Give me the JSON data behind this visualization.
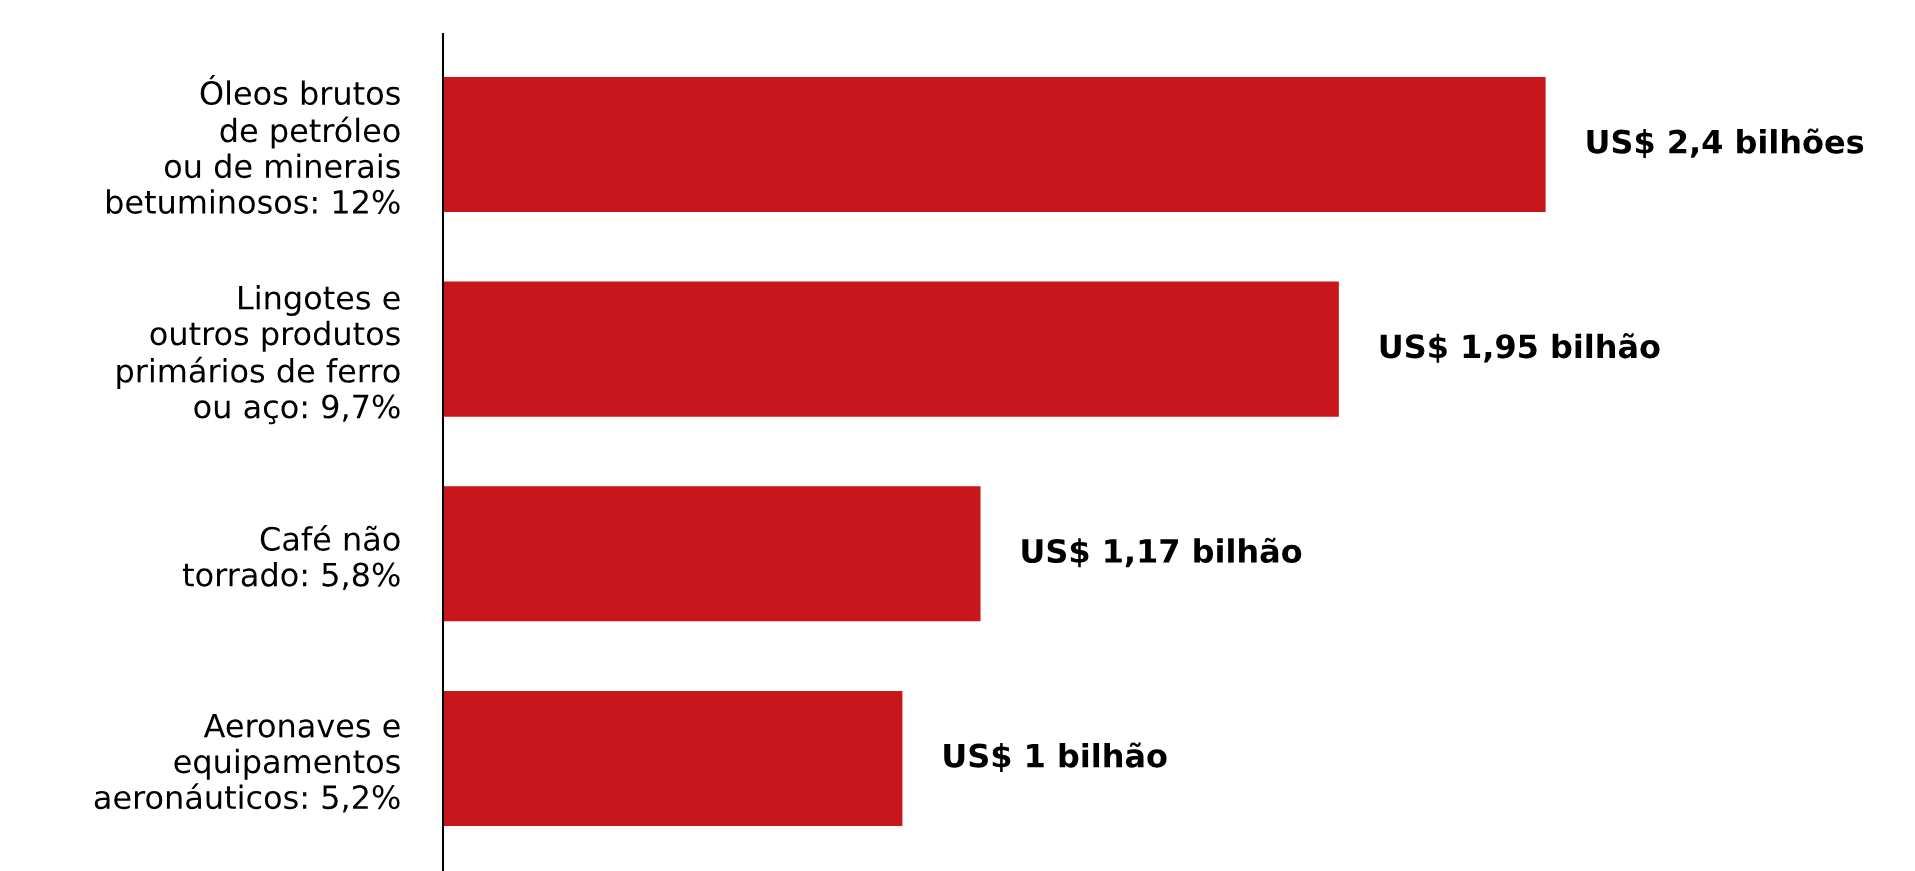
{
  "chart_data": {
    "type": "bar",
    "orientation": "horizontal",
    "categories": [
      "Óleos brutos\nde petróleo\nou de minerais\nbetuminosos: 12%",
      "Lingotes e\noutros produtos\nprimários de ferro\nou aço: 9,7%",
      "Café não\ntorrado: 5,8%",
      "Aeronaves e\nequipamentos\naeronáuticos: 5,2%"
    ],
    "values": [
      2.4,
      1.95,
      1.17,
      1
    ],
    "value_labels": [
      "US$ 2,4 bilhões",
      "US$ 1,95 bilhão",
      "US$ 1,17 bilhão",
      "US$ 1 bilhão"
    ],
    "color": "#c8171c",
    "grid": false,
    "legend": false
  }
}
